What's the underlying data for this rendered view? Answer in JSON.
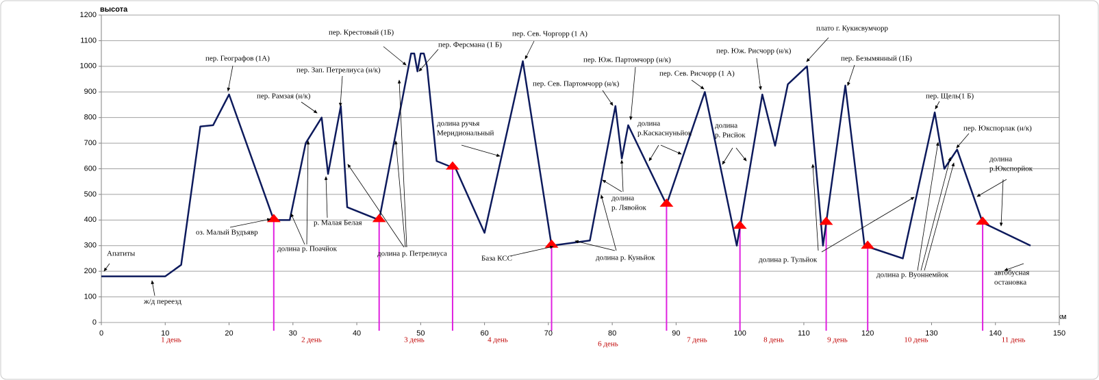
{
  "chart_data": {
    "type": "line",
    "y_label": "высота",
    "x_label": "км",
    "x": [
      0,
      10,
      12.5,
      15.5,
      17.5,
      20,
      27,
      29.5,
      32,
      34.5,
      35.5,
      37.5,
      38.5,
      43.5,
      48.5,
      49,
      49.5,
      50,
      50.5,
      51,
      52.5,
      55.5,
      60,
      66,
      70.5,
      76.5,
      80.5,
      81.5,
      82.5,
      88.5,
      94.5,
      99.5,
      103.5,
      105.5,
      107.5,
      110.5,
      113,
      116.5,
      119.5,
      125.5,
      130.5,
      132,
      134,
      138,
      145.5
    ],
    "series": [
      {
        "color": "#0d1a5c",
        "values": [
          180,
          180,
          225,
          765,
          770,
          890,
          400,
          400,
          700,
          800,
          580,
          845,
          450,
          400,
          1050,
          1050,
          980,
          1050,
          1050,
          1000,
          630,
          600,
          350,
          1020,
          300,
          320,
          845,
          640,
          770,
          460,
          900,
          300,
          890,
          690,
          930,
          1000,
          300,
          925,
          300,
          250,
          820,
          600,
          675,
          390,
          300
        ]
      }
    ],
    "xlim": [
      0,
      150
    ],
    "ylim": [
      0,
      1200
    ],
    "xticks": [
      0,
      10,
      20,
      30,
      40,
      50,
      60,
      70,
      80,
      90,
      100,
      110,
      120,
      130,
      140,
      150
    ],
    "yticks": [
      0,
      100,
      200,
      300,
      400,
      500,
      600,
      700,
      800,
      900,
      1000,
      1100,
      1200
    ],
    "grid": true,
    "day_marks": [
      27,
      43.5,
      55,
      70.5,
      88.5,
      100,
      113.5,
      120,
      138
    ],
    "day_mark_color": "#e020e0",
    "day_labels": [
      "1 день",
      "2 день",
      "3 день",
      "4 день",
      "6 день",
      "7 день",
      "8 день",
      "9 день",
      "10 день",
      "11 день"
    ],
    "annotations": [
      [
        "Апатиты"
      ],
      [
        "ж/д переезд"
      ],
      [
        "пер. Географов (1А)"
      ],
      [
        "оз. Малый Вудъявр"
      ],
      [
        "пер. Рамзая (н/к)"
      ],
      [
        "пер. Зап. Петрелиуса (н/к)"
      ],
      [
        "долина р. Поачйок"
      ],
      [
        "р. Малая Белая"
      ],
      [
        "пер. Крестовый (1Б)"
      ],
      [
        "пер. Ферсмана (1 Б)"
      ],
      [
        "долина р. Петрелиуса"
      ],
      [
        "пер. Сев. Чоргорр (1 А)"
      ],
      [
        "долина ручья",
        "Меридиональный"
      ],
      [
        "База КСС"
      ],
      [
        "пер. Сев. Партомчорр (н/к)"
      ],
      [
        "пер. Юж. Партомчорр (н/к)"
      ],
      [
        "долина",
        "р.Каскаснуньйок"
      ],
      [
        "долина",
        "р. Лявойок"
      ],
      [
        "долина р. Куньйок"
      ],
      [
        "пер. Сев. Рисчорр  (1 А)"
      ],
      [
        "долина",
        "р. Рисйок"
      ],
      [
        "пер. Юж. Рисчорр (н/к)"
      ],
      [
        "плато г. Кукисвумчорр"
      ],
      [
        "пер. Безымянный (1Б)"
      ],
      [
        "долина р. Тульйок"
      ],
      [
        "пер. Щель(1 Б)"
      ],
      [
        "пер. Юкспорлак (н/к)"
      ],
      [
        "долина р. Вуоннемйок"
      ],
      [
        "долина",
        "р.Юкспорйок"
      ],
      [
        "автобусная",
        "остановка"
      ]
    ]
  }
}
